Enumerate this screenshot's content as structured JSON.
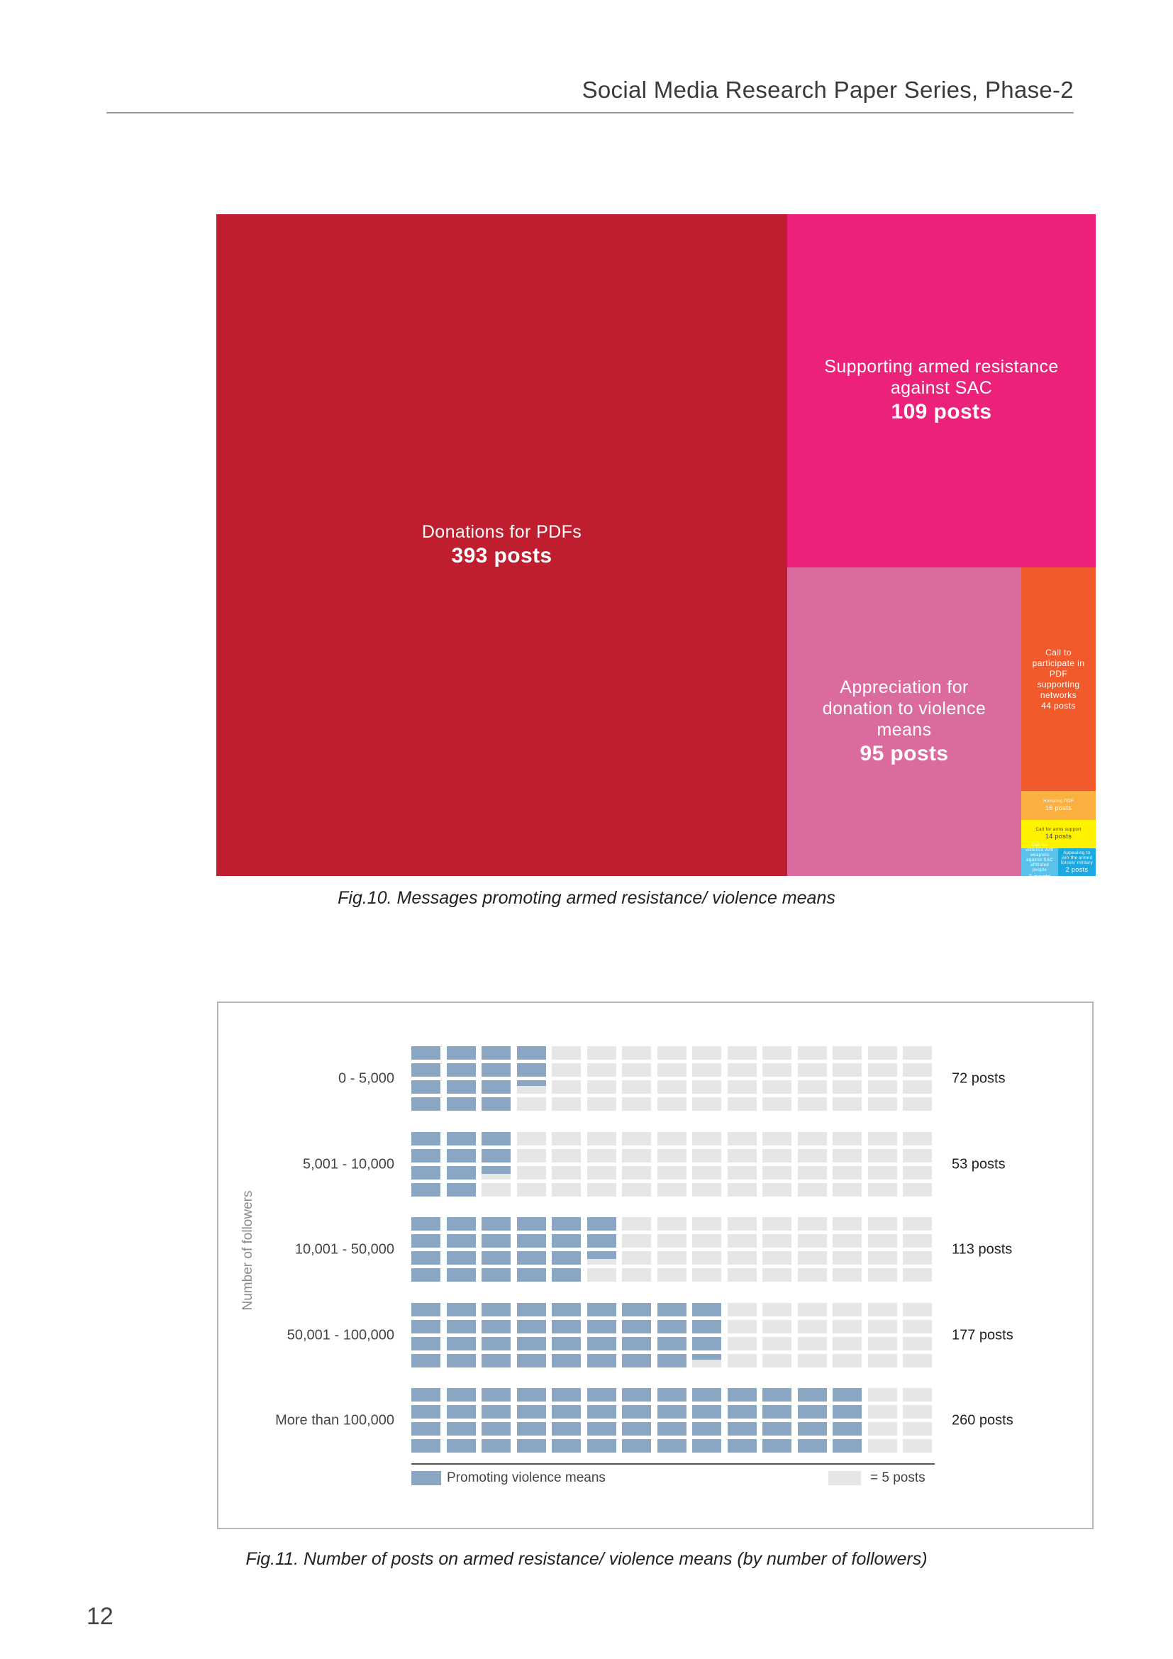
{
  "header": {
    "title": "Social Media Research Paper Series, Phase-2"
  },
  "page_number": "12",
  "chart_data": [
    {
      "type": "treemap",
      "caption": "Fig.10. Messages promoting armed resistance/ violence means",
      "items": [
        {
          "name": "Donations for PDFs",
          "value": 393,
          "value_label": "393 posts",
          "color": "#be1e2d"
        },
        {
          "name": "Supporting armed resistance against SAC",
          "value": 109,
          "value_label": "109 posts",
          "color": "#ec217a"
        },
        {
          "name": "Appreciation for donation to violence means",
          "value": 95,
          "value_label": "95 posts",
          "color": "#db6a9e"
        },
        {
          "name": "Call to participate in PDF supporting networks",
          "value": 44,
          "value_label": "44 posts",
          "color": "#f15a2b"
        },
        {
          "name": "Honoring PDF",
          "value": 16,
          "value_label": "16 posts",
          "color": "#fbb040"
        },
        {
          "name": "Call for arms support",
          "value": 14,
          "value_label": "14 posts",
          "color": "#fff200"
        },
        {
          "name": "Call for violence with weapons against SAC affiliated people",
          "value": 2,
          "value_label": "2 posts",
          "color": "#5bc3eb"
        },
        {
          "name": "Appealing to join the armed forces/ military",
          "value": 2,
          "value_label": "2 posts",
          "color": "#1ba9e0"
        }
      ]
    },
    {
      "type": "waffle",
      "caption": "Fig.11. Number of posts on armed resistance/ violence means (by number of followers)",
      "ylabel": "Number of followers",
      "categories": [
        "0 - 5,000",
        "5,001 - 10,000",
        "10,001 - 50,000",
        "50,001 - 100,000",
        "More than 100,000"
      ],
      "values": [
        72,
        53,
        113,
        177,
        260
      ],
      "value_labels": [
        "72 posts",
        "53 posts",
        "113 posts",
        "177 posts",
        "260 posts"
      ],
      "unit_per_cell": 5,
      "cells_per_row": 60,
      "series_name": "Promoting violence means",
      "unit_label": "= 5 posts",
      "colors": {
        "filled": "#8aa6c3",
        "empty": "#e6e6e6"
      }
    }
  ]
}
